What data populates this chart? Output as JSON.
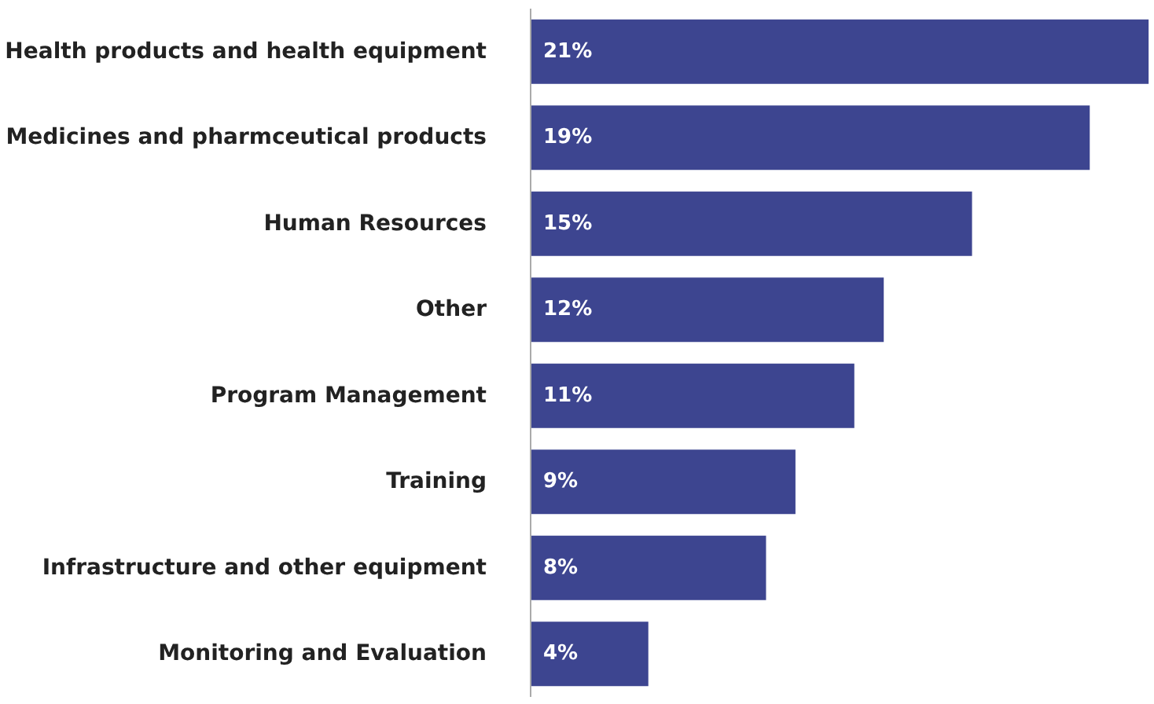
{
  "chart_data": {
    "type": "bar",
    "orientation": "horizontal",
    "categories": [
      "Health products and health equipment",
      "Medicines and pharmceutical products",
      "Human Resources",
      "Other",
      "Program Management",
      "Training",
      "Infrastructure and other equipment",
      "Monitoring and Evaluation"
    ],
    "values": [
      21,
      19,
      15,
      12,
      11,
      9,
      8,
      4
    ],
    "value_labels": [
      "21%",
      "19%",
      "15%",
      "12%",
      "11%",
      "9%",
      "8%",
      "4%"
    ],
    "color": "#3d4590",
    "grid": false
  }
}
